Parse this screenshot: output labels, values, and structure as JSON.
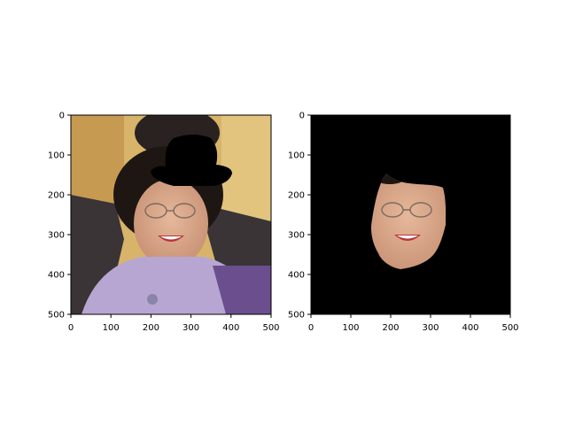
{
  "chart_data": [
    {
      "type": "image",
      "title": "",
      "xlabel": "",
      "ylabel": "",
      "xlim": [
        0,
        500
      ],
      "ylim": [
        500,
        0
      ],
      "xticks": [
        0,
        100,
        200,
        300,
        400,
        500
      ],
      "yticks": [
        0,
        100,
        200,
        300,
        400,
        500
      ],
      "xtick_labels": [
        "0",
        "100",
        "200",
        "300",
        "400",
        "500"
      ],
      "ytick_labels": [
        "0",
        "100",
        "200",
        "300",
        "400",
        "500"
      ],
      "image_content": "portrait photo of a smiling woman wearing glasses and a lavender top, with a black hat shape drawn over her head",
      "overlay": {
        "shape": "bowler hat",
        "color": "#000000"
      },
      "grid": false
    },
    {
      "type": "image",
      "title": "",
      "xlabel": "",
      "ylabel": "",
      "xlim": [
        0,
        500
      ],
      "ylim": [
        500,
        0
      ],
      "xticks": [
        0,
        100,
        200,
        300,
        400,
        500
      ],
      "yticks": [
        0,
        100,
        200,
        300,
        400,
        500
      ],
      "xtick_labels": [
        "0",
        "100",
        "200",
        "300",
        "400",
        "500"
      ],
      "ytick_labels": [
        "0",
        "100",
        "200",
        "300",
        "400",
        "500"
      ],
      "image_content": "same portrait masked to show only the face region on a black background",
      "background": "#000000",
      "grid": false
    }
  ],
  "colors": {
    "axis": "#000000",
    "background": "#ffffff",
    "photo_wall": "#d8b46a",
    "suit": "#3a3436",
    "blouse": "#b8a6d2",
    "scarf": "#6a4e8e",
    "hair": "#1e1612",
    "skin": "#d9a88a",
    "mask": "#000000"
  }
}
